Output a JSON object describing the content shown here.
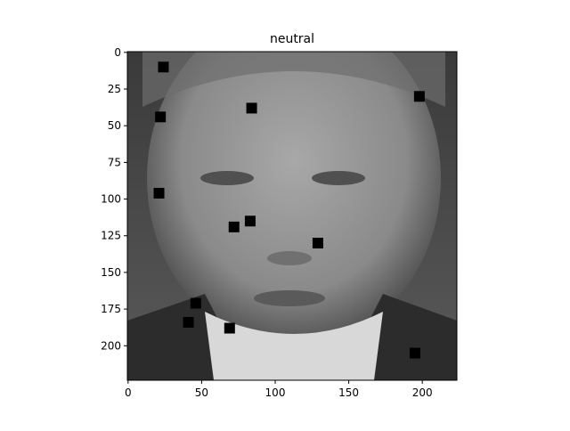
{
  "chart_data": {
    "type": "image",
    "title": "neutral",
    "xlim": [
      -0.5,
      223.5
    ],
    "xticks": [
      0,
      50,
      100,
      150,
      200
    ],
    "ylim": [
      223.5,
      -0.5
    ],
    "yticks": [
      0,
      25,
      50,
      75,
      100,
      125,
      150,
      175,
      200
    ],
    "patch_color": "#000000",
    "patches": {
      "x": [
        24,
        198,
        84,
        22,
        21,
        83,
        72,
        129,
        46,
        41,
        69,
        195
      ],
      "y": [
        10,
        30,
        38,
        44,
        96,
        115,
        119,
        130,
        171,
        184,
        188,
        205
      ]
    }
  }
}
